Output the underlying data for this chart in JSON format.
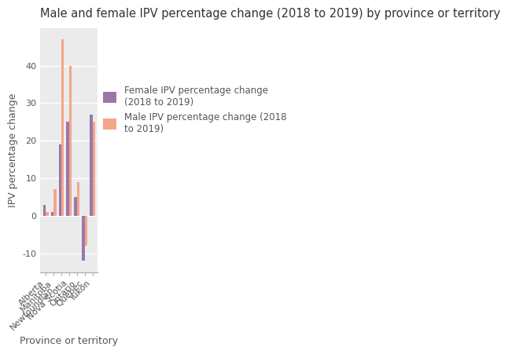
{
  "title": "Male and female IPV percentage change (2018 to 2019) by province or territory",
  "xlabel": "Province or territory",
  "ylabel": "IPV percentage change",
  "categories": [
    "Alberta",
    "Manitoba",
    "Newfoundlan...",
    "Nova Scotia",
    "Ontario",
    "Quebec",
    "Yukon"
  ],
  "female_values": [
    3,
    1,
    19,
    25,
    5,
    -12,
    27
  ],
  "male_values": [
    1,
    7,
    47,
    40,
    9,
    -8,
    25
  ],
  "female_color": "#9b77a8",
  "male_color": "#f4a58a",
  "ylim": [
    -15,
    50
  ],
  "yticks": [
    -10,
    0,
    10,
    20,
    30,
    40
  ],
  "legend_female": "Female IPV percentage change\n(2018 to 2019)",
  "legend_male": "Male IPV percentage change (2018\nto 2019)",
  "plot_bg_color": "#ebebeb",
  "fig_bg_color": "#ffffff",
  "bar_width": 0.35,
  "title_fontsize": 10.5,
  "axis_label_fontsize": 9,
  "tick_fontsize": 8,
  "legend_fontsize": 8.5
}
